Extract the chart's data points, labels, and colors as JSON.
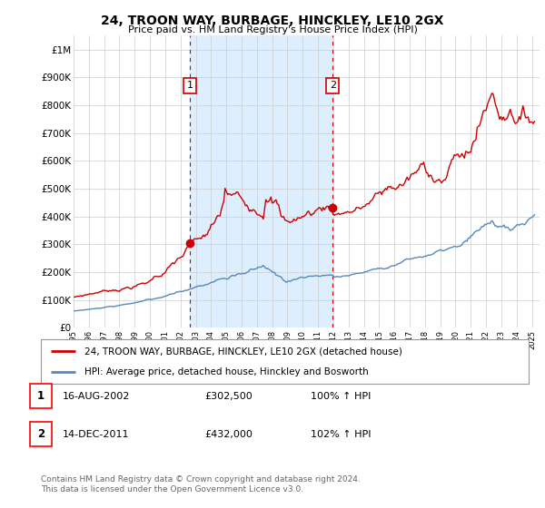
{
  "title": "24, TROON WAY, BURBAGE, HINCKLEY, LE10 2GX",
  "subtitle": "Price paid vs. HM Land Registry's House Price Index (HPI)",
  "legend_line1": "24, TROON WAY, BURBAGE, HINCKLEY, LE10 2GX (detached house)",
  "legend_line2": "HPI: Average price, detached house, Hinckley and Bosworth",
  "footer1": "Contains HM Land Registry data © Crown copyright and database right 2024.",
  "footer2": "This data is licensed under the Open Government Licence v3.0.",
  "transaction1_date": "16-AUG-2002",
  "transaction1_price": "£302,500",
  "transaction1_hpi": "100% ↑ HPI",
  "transaction2_date": "14-DEC-2011",
  "transaction2_price": "£432,000",
  "transaction2_hpi": "102% ↑ HPI",
  "red_color": "#cc0000",
  "blue_color": "#5588bb",
  "shade_color": "#ddeeff",
  "grid_color": "#cccccc",
  "plot_bg": "#ffffff",
  "fig_bg": "#ffffff",
  "yticks": [
    0,
    100000,
    200000,
    300000,
    400000,
    500000,
    600000,
    700000,
    800000,
    900000,
    1000000
  ],
  "transaction1_x": 2002.625,
  "transaction1_y": 302500,
  "transaction2_x": 2011.958,
  "transaction2_y": 432000,
  "vline1_x": 2002.625,
  "vline2_x": 2011.958,
  "xmin": 1995.0,
  "xmax": 2025.5
}
